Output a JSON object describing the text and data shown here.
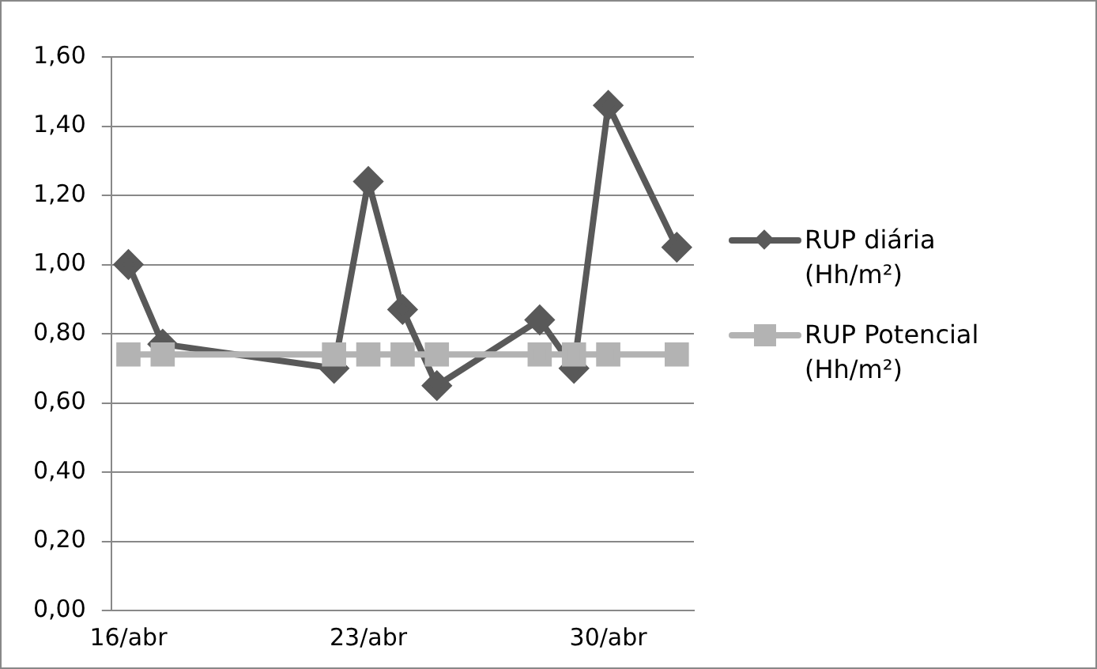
{
  "chart_data": {
    "type": "line",
    "x": [
      "--04-16",
      "--04-17",
      "--04-22",
      "--04-23",
      "--04-24",
      "--04-25",
      "--04-28",
      "--04-29",
      "--04-30",
      "--05-02"
    ],
    "series": [
      {
        "name": "RUP diária (Hh/m²)",
        "color": "#595959",
        "marker": "diamond",
        "values": [
          1.0,
          0.77,
          0.7,
          1.24,
          0.87,
          0.65,
          0.84,
          0.7,
          1.46,
          1.05
        ]
      },
      {
        "name": "RUP Potencial (Hh/m²)",
        "color": "#b3b3b3",
        "marker": "square",
        "values": [
          0.74,
          0.74,
          0.74,
          0.74,
          0.74,
          0.74,
          0.74,
          0.74,
          0.74,
          0.74
        ]
      }
    ],
    "xlim": [
      "--04-15T12:00",
      "--05-02T12:00"
    ],
    "xticks": [
      {
        "value": "--04-16",
        "label": "16/abr"
      },
      {
        "value": "--04-23",
        "label": "23/abr"
      },
      {
        "value": "--04-30",
        "label": "30/abr"
      }
    ],
    "ylim": [
      0,
      1.6
    ],
    "yticks": [
      {
        "value": 0,
        "label": "0,00"
      },
      {
        "value": 0.2,
        "label": "0,20"
      },
      {
        "value": 0.4,
        "label": "0,40"
      },
      {
        "value": 0.6,
        "label": "0,60"
      },
      {
        "value": 0.8,
        "label": "0,80"
      },
      {
        "value": 1.0,
        "label": "1,00"
      },
      {
        "value": 1.2,
        "label": "1,20"
      },
      {
        "value": 1.4,
        "label": "1,40"
      },
      {
        "value": 1.6,
        "label": "1,60"
      }
    ],
    "grid": "y",
    "legend": "right",
    "line_style": "solid"
  }
}
